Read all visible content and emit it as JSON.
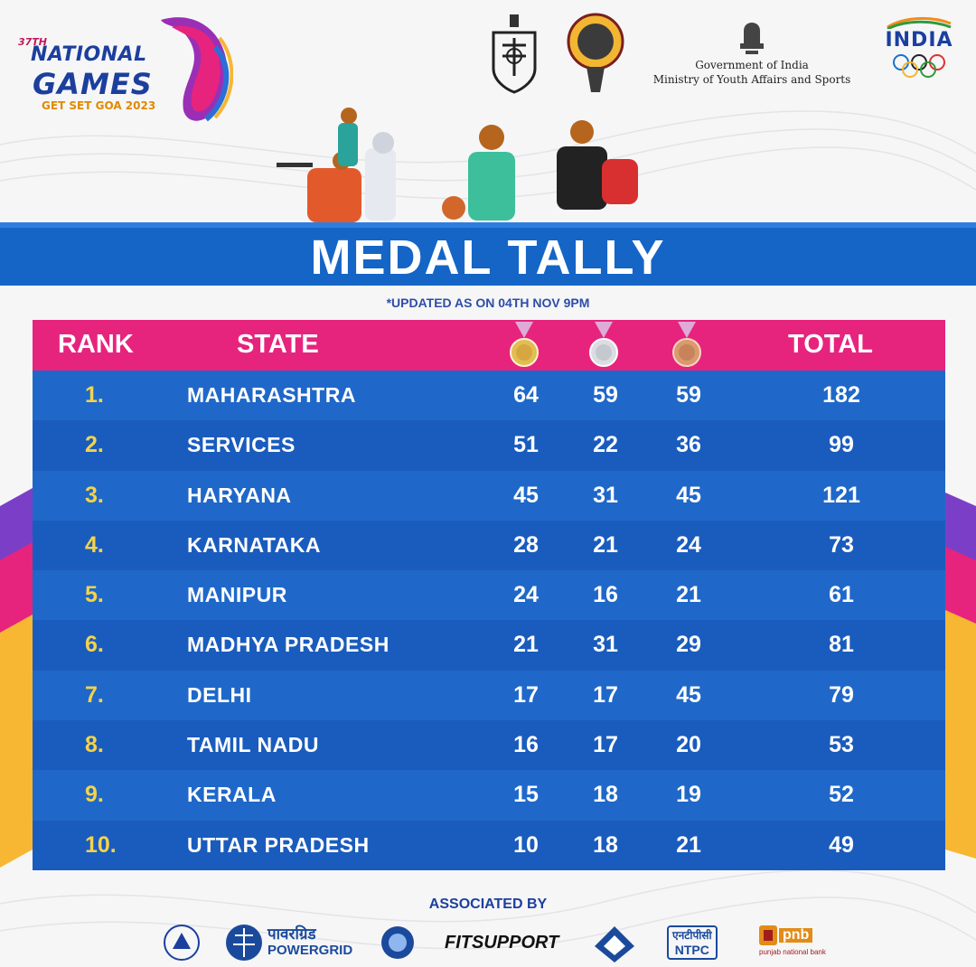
{
  "header": {
    "games_edition": "37TH",
    "games_name_line1": "NATIONAL",
    "games_name_line2": "GAMES",
    "games_tagline": "GET SET GOA 2023",
    "gov_line1": "Government of India",
    "gov_line2": "Ministry of Youth Affairs and Sports",
    "india_label": "INDIA"
  },
  "title": "MEDAL TALLY",
  "updated_note": "*UPDATED AS ON 04TH NOV 9PM",
  "table": {
    "columns": {
      "rank": "RANK",
      "state": "STATE",
      "total": "TOTAL"
    },
    "medal_icons": [
      "gold-medal-icon",
      "silver-medal-icon",
      "bronze-medal-icon"
    ],
    "rows": [
      {
        "rank": "1.",
        "state": "MAHARASHTRA",
        "gold": "64",
        "silver": "59",
        "bronze": "59",
        "total": "182"
      },
      {
        "rank": "2.",
        "state": "SERVICES",
        "gold": "51",
        "silver": "22",
        "bronze": "36",
        "total": "99"
      },
      {
        "rank": "3.",
        "state": "HARYANA",
        "gold": "45",
        "silver": "31",
        "bronze": "45",
        "total": "121"
      },
      {
        "rank": "4.",
        "state": "KARNATAKA",
        "gold": "28",
        "silver": "21",
        "bronze": "24",
        "total": "73"
      },
      {
        "rank": "5.",
        "state": "MANIPUR",
        "gold": "24",
        "silver": "16",
        "bronze": "21",
        "total": "61"
      },
      {
        "rank": "6.",
        "state": "MADHYA PRADESH",
        "gold": "21",
        "silver": "31",
        "bronze": "29",
        "total": "81"
      },
      {
        "rank": "7.",
        "state": "DELHI",
        "gold": "17",
        "silver": "17",
        "bronze": "45",
        "total": "79"
      },
      {
        "rank": "8.",
        "state": "TAMIL NADU",
        "gold": "16",
        "silver": "17",
        "bronze": "20",
        "total": "53"
      },
      {
        "rank": "9.",
        "state": "KERALA",
        "gold": "15",
        "silver": "18",
        "bronze": "19",
        "total": "52"
      },
      {
        "rank": "10.",
        "state": "UTTAR PRADESH",
        "gold": "10",
        "silver": "18",
        "bronze": "21",
        "total": "49"
      }
    ]
  },
  "footer": {
    "associated_label": "ASSOCIATED BY",
    "sponsors": {
      "powergrid_hindi": "पावरग्रिड",
      "powergrid": "POWERGRID",
      "fitsupport": "FITSUPPORT",
      "ntpc_hindi": "एनटीपीसी",
      "ntpc": "NTPC",
      "pnb": "pnb",
      "pnb_sub": "punjab national bank"
    }
  },
  "colors": {
    "title_band": "#1565c7",
    "header_row": "#e6247d",
    "row_odd": "#1f68c9",
    "row_even": "#1a5cbd",
    "rank_text": "#f4d34a",
    "brand_blue": "#1c3f9e"
  }
}
